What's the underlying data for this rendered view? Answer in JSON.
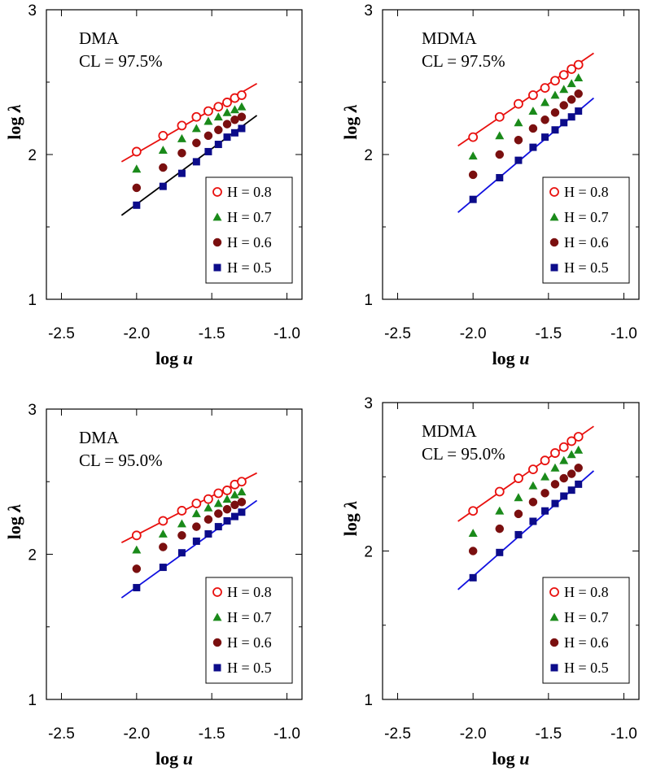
{
  "colors": {
    "H08": "#e8100e",
    "H07": "#1a8a1a",
    "H06": "#7a0f0f",
    "H05": "#0c0c8a",
    "fit_red": "#e8100e",
    "fit_black": "#000000",
    "fit_blue": "#1010e0"
  },
  "chart_data": [
    {
      "type": "scatter",
      "title": "DMA",
      "subtitle": "CL = 97.5%",
      "xlabel": "log u",
      "ylabel": "log λ",
      "xlim": [
        -2.6,
        -0.9
      ],
      "ylim": [
        1,
        3
      ],
      "xticks": [
        "-2.5",
        "-2.0",
        "-1.5",
        "-1.0"
      ],
      "xtick_values": [
        -2.5,
        -2.0,
        -1.5,
        -1.0
      ],
      "yticks": [
        "1",
        "2",
        "3"
      ],
      "ytick_values": [
        1,
        2,
        3
      ],
      "legend_position": "lower-right",
      "x": [
        -2.0,
        -1.824,
        -1.699,
        -1.602,
        -1.523,
        -1.456,
        -1.398,
        -1.347,
        -1.301
      ],
      "series": [
        {
          "name": "H = 0.8",
          "marker": "open-circle",
          "color": "#e8100e",
          "values": [
            2.02,
            2.13,
            2.2,
            2.26,
            2.3,
            2.33,
            2.36,
            2.39,
            2.41
          ]
        },
        {
          "name": "H = 0.7",
          "marker": "triangle",
          "color": "#1a8a1a",
          "values": [
            1.9,
            2.03,
            2.11,
            2.18,
            2.23,
            2.26,
            2.29,
            2.31,
            2.33
          ]
        },
        {
          "name": "H = 0.6",
          "marker": "filled-circle",
          "color": "#7a0f0f",
          "values": [
            1.77,
            1.91,
            2.01,
            2.08,
            2.13,
            2.17,
            2.21,
            2.24,
            2.26
          ]
        },
        {
          "name": "H = 0.5",
          "marker": "square",
          "color": "#0c0c8a",
          "values": [
            1.65,
            1.78,
            1.87,
            1.95,
            2.02,
            2.07,
            2.12,
            2.15,
            2.18
          ]
        }
      ],
      "fits": [
        {
          "color": "#e8100e",
          "x": [
            -2.1,
            -1.2
          ],
          "y": [
            1.95,
            2.49
          ]
        },
        {
          "color": "#000000",
          "x": [
            -2.1,
            -1.2
          ],
          "y": [
            1.58,
            2.27
          ]
        }
      ]
    },
    {
      "type": "scatter",
      "title": "MDMA",
      "subtitle": "CL = 97.5%",
      "xlabel": "log u",
      "ylabel": "log λ",
      "xlim": [
        -2.6,
        -0.9
      ],
      "ylim": [
        1,
        3
      ],
      "xticks": [
        "-2.5",
        "-2.0",
        "-1.5",
        "-1.0"
      ],
      "xtick_values": [
        -2.5,
        -2.0,
        -1.5,
        -1.0
      ],
      "yticks": [
        "1",
        "2",
        "3"
      ],
      "ytick_values": [
        1,
        2,
        3
      ],
      "legend_position": "lower-right",
      "x": [
        -2.0,
        -1.824,
        -1.699,
        -1.602,
        -1.523,
        -1.456,
        -1.398,
        -1.347,
        -1.301
      ],
      "series": [
        {
          "name": "H = 0.8",
          "marker": "open-circle",
          "color": "#e8100e",
          "values": [
            2.12,
            2.26,
            2.35,
            2.41,
            2.46,
            2.51,
            2.55,
            2.59,
            2.62
          ]
        },
        {
          "name": "H = 0.7",
          "marker": "triangle",
          "color": "#1a8a1a",
          "values": [
            1.99,
            2.13,
            2.22,
            2.3,
            2.36,
            2.41,
            2.45,
            2.49,
            2.53
          ]
        },
        {
          "name": "H = 0.6",
          "marker": "filled-circle",
          "color": "#7a0f0f",
          "values": [
            1.86,
            2.0,
            2.1,
            2.18,
            2.24,
            2.29,
            2.34,
            2.38,
            2.42
          ]
        },
        {
          "name": "H = 0.5",
          "marker": "square",
          "color": "#0c0c8a",
          "values": [
            1.69,
            1.84,
            1.96,
            2.05,
            2.12,
            2.17,
            2.22,
            2.26,
            2.3
          ]
        }
      ],
      "fits": [
        {
          "color": "#e8100e",
          "x": [
            -2.1,
            -1.2
          ],
          "y": [
            2.06,
            2.7
          ]
        },
        {
          "color": "#1010e0",
          "x": [
            -2.1,
            -1.2
          ],
          "y": [
            1.6,
            2.39
          ]
        }
      ]
    },
    {
      "type": "scatter",
      "title": "DMA",
      "subtitle": "CL = 95.0%",
      "xlabel": "log u",
      "ylabel": "log λ",
      "xlim": [
        -2.6,
        -0.9
      ],
      "ylim": [
        1,
        3
      ],
      "xticks": [
        "-2.5",
        "-2.0",
        "-1.5",
        "-1.0"
      ],
      "xtick_values": [
        -2.5,
        -2.0,
        -1.5,
        -1.0
      ],
      "yticks": [
        "1",
        "2",
        "3"
      ],
      "ytick_values": [
        1,
        2,
        3
      ],
      "legend_position": "lower-right",
      "x": [
        -2.0,
        -1.824,
        -1.699,
        -1.602,
        -1.523,
        -1.456,
        -1.398,
        -1.347,
        -1.301
      ],
      "series": [
        {
          "name": "H = 0.8",
          "marker": "open-circle",
          "color": "#e8100e",
          "values": [
            2.13,
            2.23,
            2.3,
            2.35,
            2.38,
            2.42,
            2.44,
            2.48,
            2.5
          ]
        },
        {
          "name": "H = 0.7",
          "marker": "triangle",
          "color": "#1a8a1a",
          "values": [
            2.03,
            2.14,
            2.21,
            2.28,
            2.32,
            2.35,
            2.38,
            2.41,
            2.43
          ]
        },
        {
          "name": "H = 0.6",
          "marker": "filled-circle",
          "color": "#7a0f0f",
          "values": [
            1.9,
            2.05,
            2.13,
            2.19,
            2.24,
            2.28,
            2.31,
            2.34,
            2.36
          ]
        },
        {
          "name": "H = 0.5",
          "marker": "square",
          "color": "#0c0c8a",
          "values": [
            1.77,
            1.91,
            2.01,
            2.09,
            2.14,
            2.19,
            2.23,
            2.26,
            2.29
          ]
        }
      ],
      "fits": [
        {
          "color": "#e8100e",
          "x": [
            -2.1,
            -1.2
          ],
          "y": [
            2.08,
            2.56
          ]
        },
        {
          "color": "#1010e0",
          "x": [
            -2.1,
            -1.2
          ],
          "y": [
            1.7,
            2.37
          ]
        }
      ]
    },
    {
      "type": "scatter",
      "title": "MDMA",
      "subtitle": "CL = 95.0%",
      "xlabel": "log u",
      "ylabel": "log λ",
      "xlim": [
        -2.6,
        -0.9
      ],
      "ylim": [
        1,
        3
      ],
      "xticks": [
        "-2.5",
        "-2.0",
        "-1.5",
        "-1.0"
      ],
      "xtick_values": [
        -2.5,
        -2.0,
        -1.5,
        -1.0
      ],
      "yticks": [
        "1",
        "2",
        "3"
      ],
      "ytick_values": [
        1,
        2,
        3
      ],
      "legend_position": "lower-right",
      "x": [
        -2.0,
        -1.824,
        -1.699,
        -1.602,
        -1.523,
        -1.456,
        -1.398,
        -1.347,
        -1.301
      ],
      "series": [
        {
          "name": "H = 0.8",
          "marker": "open-circle",
          "color": "#e8100e",
          "values": [
            2.27,
            2.4,
            2.49,
            2.55,
            2.61,
            2.66,
            2.7,
            2.74,
            2.77
          ]
        },
        {
          "name": "H = 0.7",
          "marker": "triangle",
          "color": "#1a8a1a",
          "values": [
            2.12,
            2.27,
            2.36,
            2.44,
            2.5,
            2.56,
            2.61,
            2.65,
            2.68
          ]
        },
        {
          "name": "H = 0.6",
          "marker": "filled-circle",
          "color": "#7a0f0f",
          "values": [
            2.0,
            2.15,
            2.25,
            2.33,
            2.39,
            2.45,
            2.49,
            2.52,
            2.56
          ]
        },
        {
          "name": "H = 0.5",
          "marker": "square",
          "color": "#0c0c8a",
          "values": [
            1.82,
            1.99,
            2.11,
            2.2,
            2.27,
            2.32,
            2.37,
            2.41,
            2.45
          ]
        }
      ],
      "fits": [
        {
          "color": "#e8100e",
          "x": [
            -2.1,
            -1.2
          ],
          "y": [
            2.2,
            2.84
          ]
        },
        {
          "color": "#1010e0",
          "x": [
            -2.1,
            -1.2
          ],
          "y": [
            1.74,
            2.54
          ]
        }
      ]
    }
  ]
}
